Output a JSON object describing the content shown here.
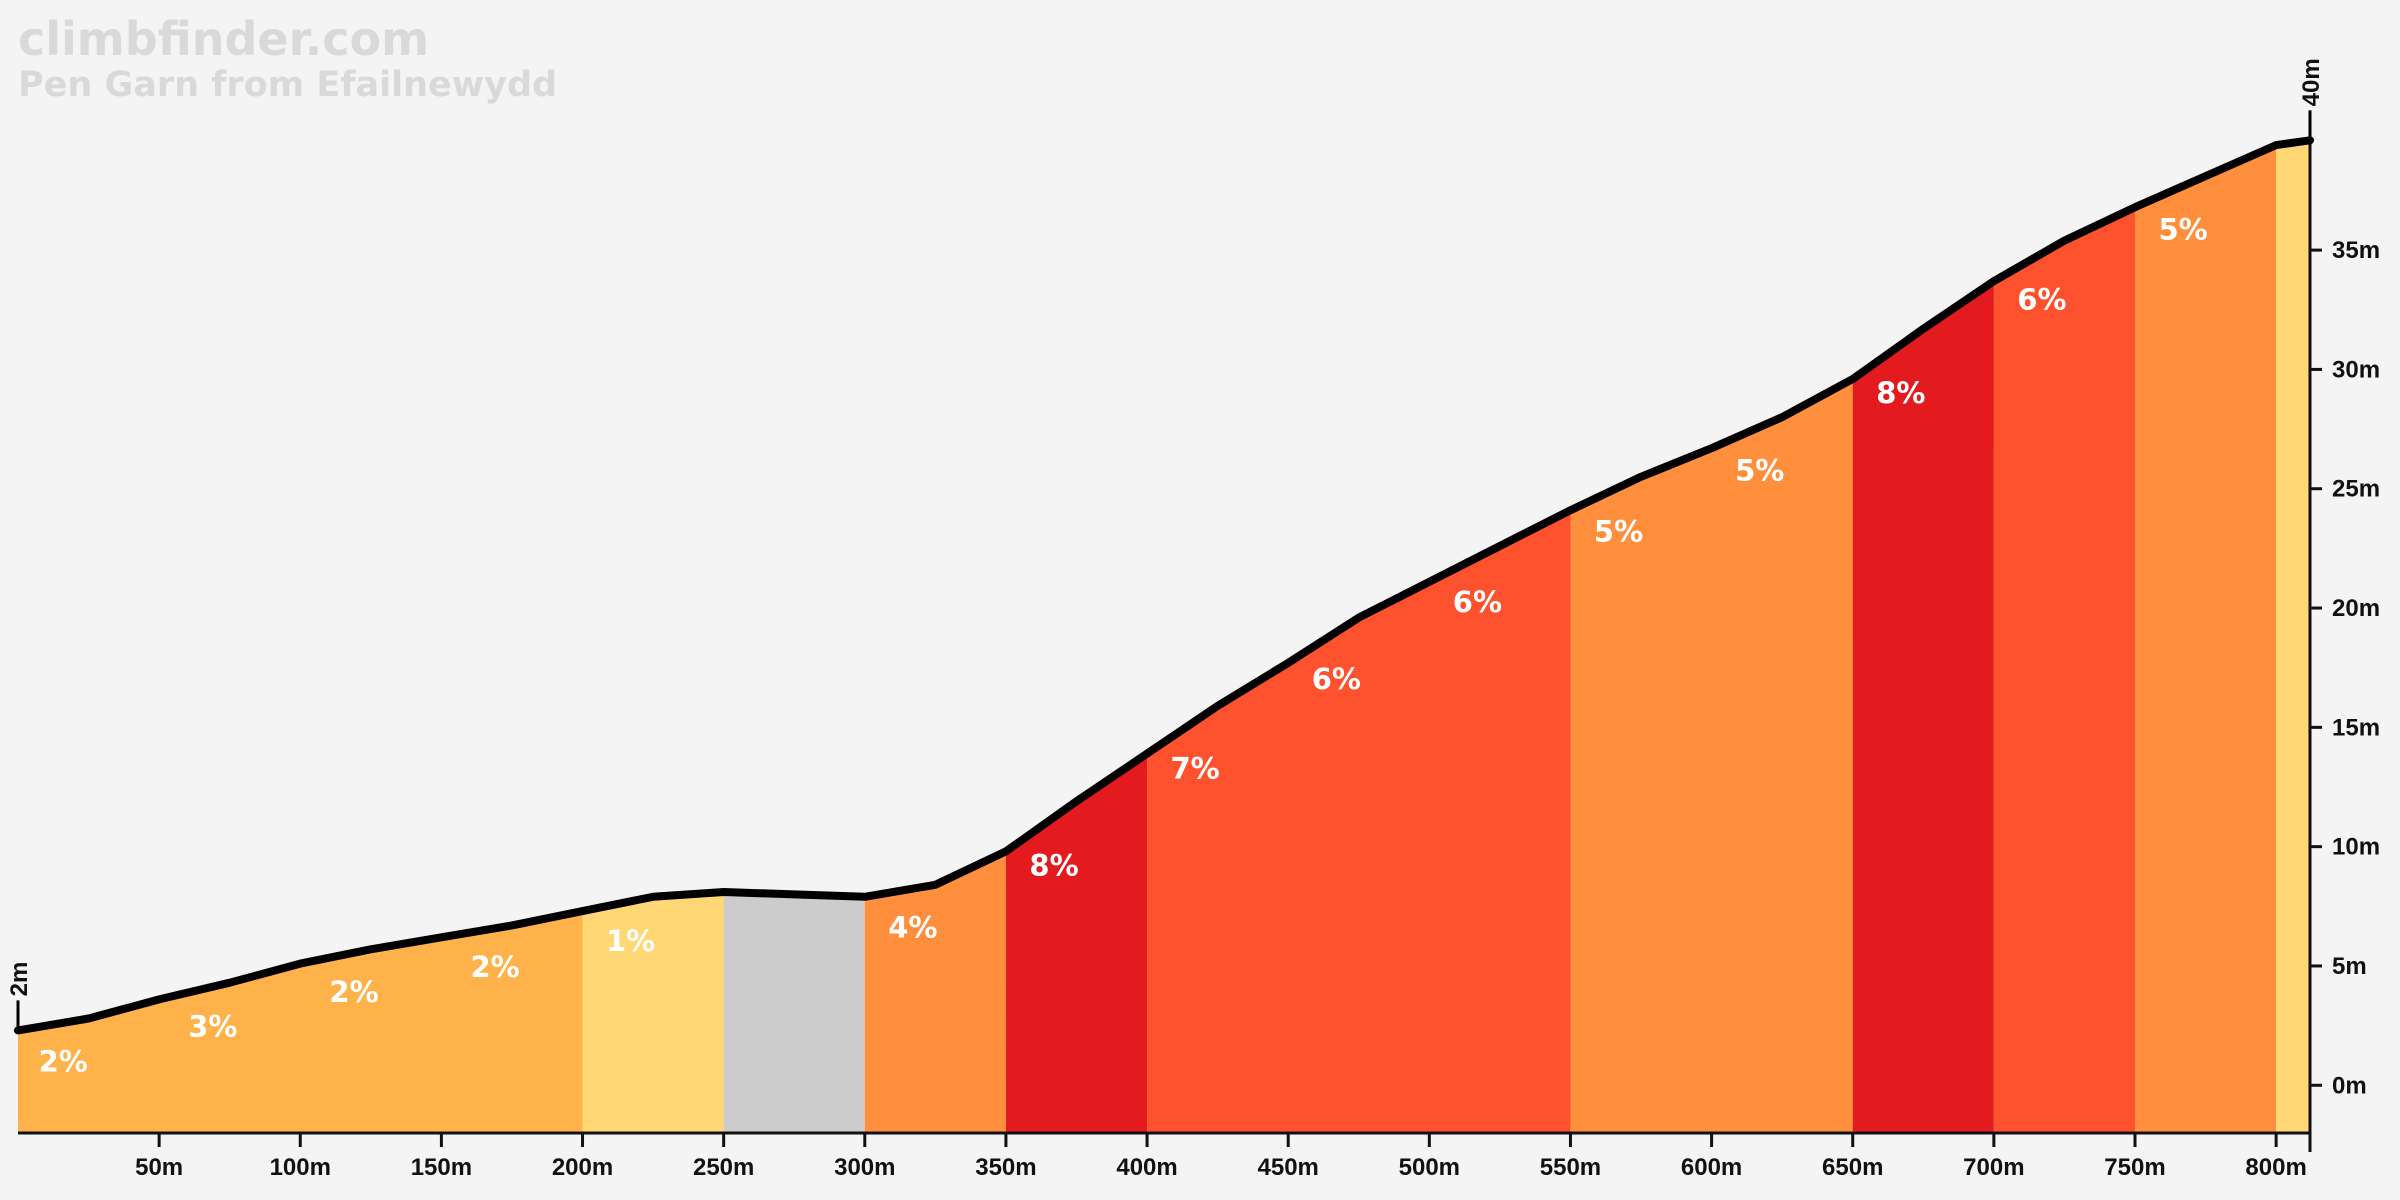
{
  "brand": {
    "site": "climbfinder.com",
    "climb_name": "Pen Garn from Efailnewydd"
  },
  "chart_data": {
    "type": "area",
    "title": "Pen Garn from Efailnewydd",
    "x_unit": "m",
    "y_unit": "m",
    "xlim": [
      0,
      810
    ],
    "ylim": [
      -2,
      41.5
    ],
    "x_ticks": [
      50,
      100,
      150,
      200,
      250,
      300,
      350,
      400,
      450,
      500,
      550,
      600,
      650,
      700,
      750,
      800
    ],
    "y_ticks": [
      0,
      5,
      10,
      15,
      20,
      25,
      30,
      35
    ],
    "start_label": "2m",
    "end_label": "40m",
    "profile": [
      [
        0,
        2.3
      ],
      [
        25,
        2.8
      ],
      [
        50,
        3.6
      ],
      [
        75,
        4.3
      ],
      [
        100,
        5.1
      ],
      [
        125,
        5.7
      ],
      [
        150,
        6.2
      ],
      [
        175,
        6.7
      ],
      [
        200,
        7.3
      ],
      [
        225,
        7.9
      ],
      [
        250,
        8.1
      ],
      [
        275,
        8.0
      ],
      [
        300,
        7.9
      ],
      [
        325,
        8.4
      ],
      [
        350,
        9.8
      ],
      [
        375,
        11.9
      ],
      [
        400,
        13.9
      ],
      [
        425,
        15.9
      ],
      [
        450,
        17.7
      ],
      [
        475,
        19.6
      ],
      [
        500,
        21.1
      ],
      [
        525,
        22.6
      ],
      [
        550,
        24.1
      ],
      [
        575,
        25.5
      ],
      [
        600,
        26.7
      ],
      [
        625,
        28.0
      ],
      [
        650,
        29.6
      ],
      [
        675,
        31.7
      ],
      [
        700,
        33.7
      ],
      [
        725,
        35.4
      ],
      [
        750,
        36.8
      ],
      [
        775,
        38.1
      ],
      [
        800,
        39.4
      ],
      [
        812,
        39.6
      ]
    ],
    "segments": [
      {
        "start": 0,
        "end": 200,
        "color": "#ffb24a"
      },
      {
        "start": 200,
        "end": 250,
        "color": "#ffd774"
      },
      {
        "start": 250,
        "end": 300,
        "color": "#cccccc"
      },
      {
        "start": 300,
        "end": 350,
        "color": "#ff8f3d"
      },
      {
        "start": 350,
        "end": 400,
        "color": "#e31b1e"
      },
      {
        "start": 400,
        "end": 550,
        "color": "#fe512e"
      },
      {
        "start": 550,
        "end": 650,
        "color": "#ff8f3d"
      },
      {
        "start": 650,
        "end": 700,
        "color": "#e31b1e"
      },
      {
        "start": 700,
        "end": 750,
        "color": "#fe512e"
      },
      {
        "start": 750,
        "end": 800,
        "color": "#ff8f3d"
      },
      {
        "start": 800,
        "end": 812,
        "color": "#ffd774"
      }
    ],
    "grade_labels": [
      {
        "x": 2,
        "text": "2%"
      },
      {
        "x": 55,
        "text": "3%"
      },
      {
        "x": 105,
        "text": "2%"
      },
      {
        "x": 155,
        "text": "2%"
      },
      {
        "x": 203,
        "text": "1%"
      },
      {
        "x": 303,
        "text": "4%"
      },
      {
        "x": 353,
        "text": "8%"
      },
      {
        "x": 403,
        "text": "7%"
      },
      {
        "x": 453,
        "text": "6%"
      },
      {
        "x": 503,
        "text": "6%"
      },
      {
        "x": 553,
        "text": "5%"
      },
      {
        "x": 603,
        "text": "5%"
      },
      {
        "x": 653,
        "text": "8%"
      },
      {
        "x": 703,
        "text": "6%"
      },
      {
        "x": 753,
        "text": "5%"
      }
    ]
  }
}
